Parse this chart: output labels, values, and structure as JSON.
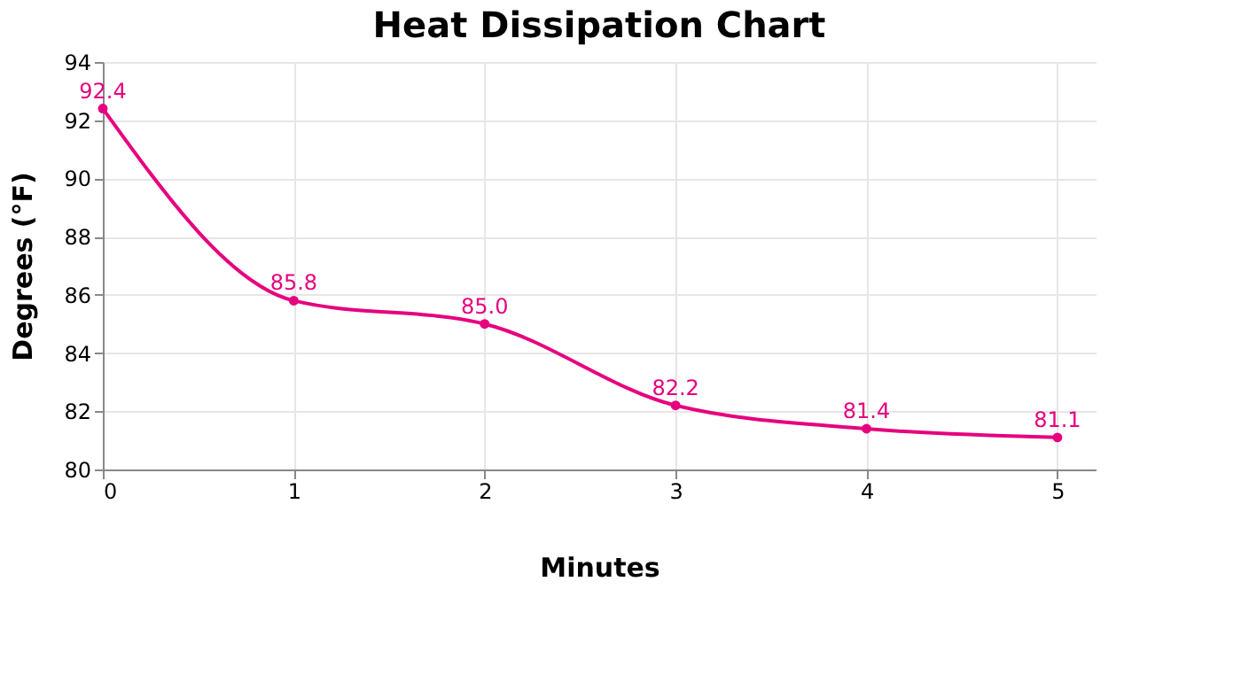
{
  "chart_data": {
    "type": "line",
    "title": "Heat Dissipation Chart",
    "xlabel": "Minutes",
    "ylabel": "Degrees (°F)",
    "x": [
      0,
      1,
      2,
      3,
      4,
      5
    ],
    "series": [
      {
        "color": "#e6007e",
        "values": [
          92.4,
          85.8,
          85.0,
          82.2,
          81.4,
          81.1
        ],
        "value_labels": [
          "92.4",
          "85.8",
          "85.0",
          "82.2",
          "81.4",
          "81.1"
        ]
      }
    ],
    "xlim": [
      0,
      5.2
    ],
    "xticks": [
      0,
      1,
      2,
      3,
      4,
      5
    ],
    "ylim": [
      80,
      94
    ],
    "yticks": [
      80,
      82,
      84,
      86,
      88,
      90,
      92,
      94
    ],
    "grid": true,
    "marker": "circle",
    "line_style": "solid"
  }
}
